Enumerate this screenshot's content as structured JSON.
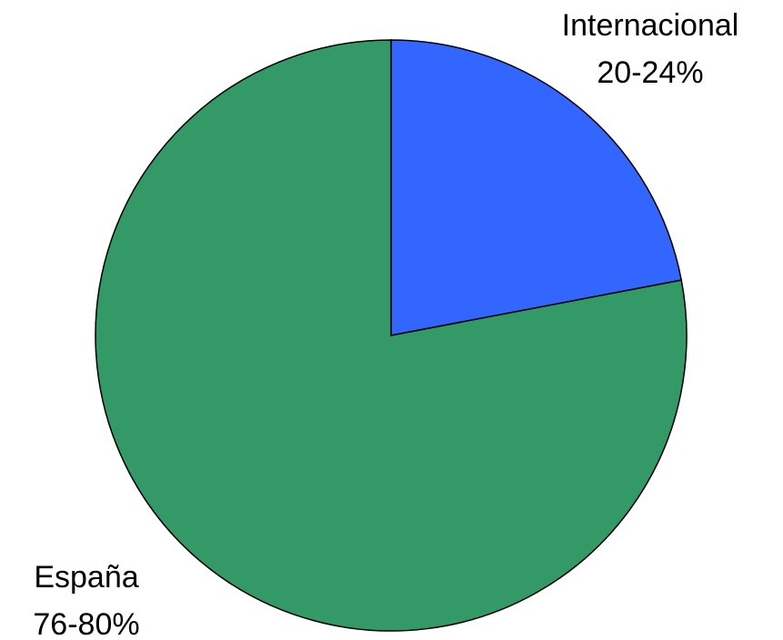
{
  "chart_data": {
    "type": "pie",
    "categories": [
      "Internacional",
      "España"
    ],
    "values": [
      22,
      78
    ],
    "value_labels": [
      "20-24%",
      "76-80%"
    ],
    "colors": [
      "#3366ff",
      "#339966"
    ]
  }
}
